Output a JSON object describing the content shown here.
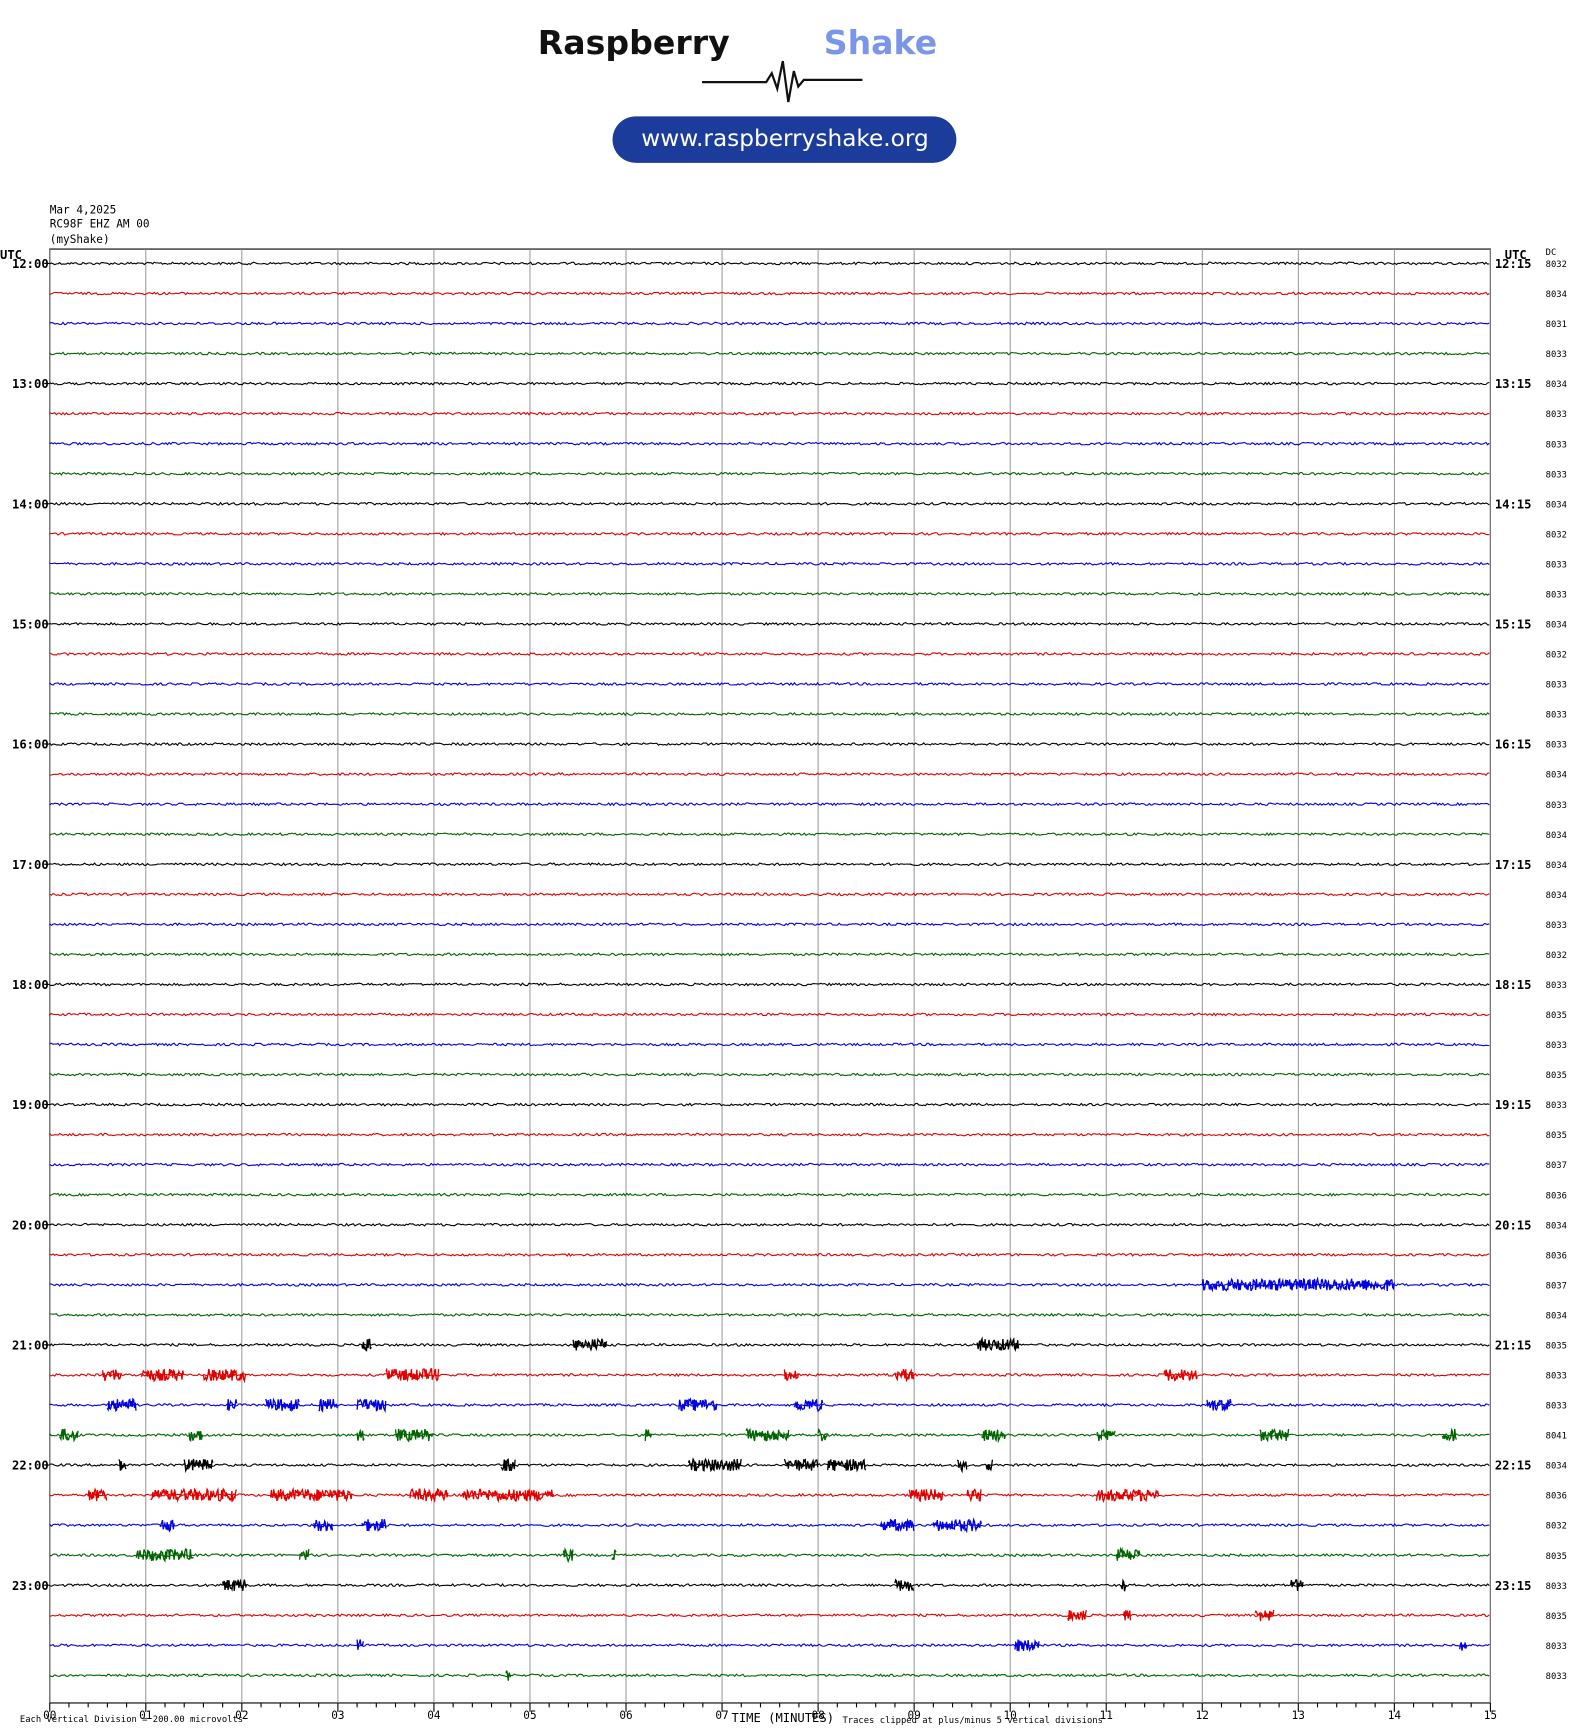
{
  "header": {
    "brand_first": "Raspberry",
    "brand_second": "Shake",
    "url": "www.raspberryshake.org"
  },
  "chart_data": {
    "type": "helicorder",
    "date": "Mar 4,2025",
    "station": "RC98F EHZ AM 00",
    "network": "(myShake)",
    "utc_left": "UTC",
    "utc_right": "UTC",
    "dc_header": "DC",
    "row_labels_left": [
      "12:00",
      "13:00",
      "14:00",
      "15:00",
      "16:00",
      "17:00",
      "18:00",
      "19:00",
      "20:00",
      "21:00",
      "22:00",
      "23:00"
    ],
    "row_labels_right": [
      "12:15",
      "13:15",
      "14:15",
      "15:15",
      "16:15",
      "17:15",
      "18:15",
      "19:15",
      "20:15",
      "21:15",
      "22:15",
      "23:15"
    ],
    "colors": [
      "#000000",
      "#e00000",
      "#0000e0",
      "#006400"
    ],
    "xlim": [
      0,
      15
    ],
    "xticks": [
      {
        "value": 0,
        "label": "00"
      },
      {
        "value": 1,
        "label": "01"
      },
      {
        "value": 2,
        "label": "02"
      },
      {
        "value": 3,
        "label": "03"
      },
      {
        "value": 4,
        "label": "04"
      },
      {
        "value": 5,
        "label": "05"
      },
      {
        "value": 6,
        "label": "06"
      },
      {
        "value": 7,
        "label": "07"
      },
      {
        "value": 8,
        "label": "08"
      },
      {
        "value": 9,
        "label": "09"
      },
      {
        "value": 10,
        "label": "10"
      },
      {
        "value": 11,
        "label": "11"
      },
      {
        "value": 12,
        "label": "12"
      },
      {
        "value": 13,
        "label": "13"
      },
      {
        "value": 14,
        "label": "14"
      },
      {
        "value": 15,
        "label": "15"
      }
    ],
    "xlabel": "TIME (MINUTES)",
    "note_left": "Each Vertical Division =  200.00 microvolts",
    "note_right": "Traces clipped at plus/minus 5 vertical divisions",
    "traces": [
      {
        "dc": "8032",
        "bursts": []
      },
      {
        "dc": "8034",
        "bursts": []
      },
      {
        "dc": "8031",
        "bursts": []
      },
      {
        "dc": "8033",
        "bursts": []
      },
      {
        "dc": "8034",
        "bursts": []
      },
      {
        "dc": "8033",
        "bursts": []
      },
      {
        "dc": "8033",
        "bursts": []
      },
      {
        "dc": "8033",
        "bursts": []
      },
      {
        "dc": "8034",
        "bursts": []
      },
      {
        "dc": "8032",
        "bursts": []
      },
      {
        "dc": "8033",
        "bursts": []
      },
      {
        "dc": "8033",
        "bursts": []
      },
      {
        "dc": "8034",
        "bursts": []
      },
      {
        "dc": "8032",
        "bursts": []
      },
      {
        "dc": "8033",
        "bursts": []
      },
      {
        "dc": "8033",
        "bursts": []
      },
      {
        "dc": "8033",
        "bursts": []
      },
      {
        "dc": "8034",
        "bursts": []
      },
      {
        "dc": "8033",
        "bursts": []
      },
      {
        "dc": "8034",
        "bursts": []
      },
      {
        "dc": "8034",
        "bursts": []
      },
      {
        "dc": "8034",
        "bursts": []
      },
      {
        "dc": "8033",
        "bursts": []
      },
      {
        "dc": "8032",
        "bursts": []
      },
      {
        "dc": "8033",
        "bursts": []
      },
      {
        "dc": "8035",
        "bursts": []
      },
      {
        "dc": "8033",
        "bursts": []
      },
      {
        "dc": "8035",
        "bursts": []
      },
      {
        "dc": "8033",
        "bursts": []
      },
      {
        "dc": "8035",
        "bursts": []
      },
      {
        "dc": "8037",
        "bursts": []
      },
      {
        "dc": "8036",
        "bursts": []
      },
      {
        "dc": "8034",
        "bursts": []
      },
      {
        "dc": "8036",
        "bursts": []
      },
      {
        "dc": "8037",
        "bursts": [
          [
            12.0,
            14.0
          ]
        ]
      },
      {
        "dc": "8034",
        "bursts": []
      },
      {
        "dc": "8035",
        "bursts": [
          [
            3.25,
            3.35
          ],
          [
            5.45,
            5.8
          ],
          [
            9.65,
            10.1
          ]
        ]
      },
      {
        "dc": "8033",
        "bursts": [
          [
            0.55,
            0.75
          ],
          [
            0.95,
            1.4
          ],
          [
            1.6,
            2.05
          ],
          [
            3.5,
            4.05
          ],
          [
            7.65,
            7.8
          ],
          [
            8.8,
            9.0
          ],
          [
            11.6,
            11.95
          ]
        ]
      },
      {
        "dc": "8033",
        "bursts": [
          [
            0.6,
            0.9
          ],
          [
            1.85,
            1.95
          ],
          [
            2.25,
            2.6
          ],
          [
            2.8,
            3.0
          ],
          [
            3.2,
            3.5
          ],
          [
            6.55,
            6.95
          ],
          [
            7.75,
            8.05
          ],
          [
            12.05,
            12.3
          ]
        ]
      },
      {
        "dc": "8041",
        "bursts": [
          [
            0.1,
            0.3
          ],
          [
            1.45,
            1.6
          ],
          [
            3.2,
            3.28
          ],
          [
            3.6,
            4.0
          ],
          [
            6.2,
            6.27
          ],
          [
            7.25,
            7.7
          ],
          [
            8.0,
            8.1
          ],
          [
            9.7,
            9.95
          ],
          [
            10.9,
            11.1
          ],
          [
            12.6,
            12.9
          ],
          [
            14.5,
            14.65
          ]
        ]
      },
      {
        "dc": "8034",
        "bursts": [
          [
            0.72,
            0.8
          ],
          [
            1.4,
            1.7
          ],
          [
            4.7,
            4.85
          ],
          [
            6.65,
            7.2
          ],
          [
            7.65,
            8.0
          ],
          [
            8.1,
            8.5
          ],
          [
            9.45,
            9.55
          ],
          [
            9.75,
            9.82
          ]
        ]
      },
      {
        "dc": "8036",
        "bursts": [
          [
            0.4,
            0.6
          ],
          [
            1.05,
            1.95
          ],
          [
            2.3,
            3.15
          ],
          [
            3.75,
            4.15
          ],
          [
            4.3,
            5.25
          ],
          [
            8.95,
            9.3
          ],
          [
            9.55,
            9.7
          ],
          [
            10.9,
            11.55
          ]
        ]
      },
      {
        "dc": "8032",
        "bursts": [
          [
            1.15,
            1.3
          ],
          [
            2.75,
            2.95
          ],
          [
            3.25,
            3.5
          ],
          [
            8.65,
            9.0
          ],
          [
            9.2,
            9.7
          ]
        ]
      },
      {
        "dc": "8035",
        "bursts": [
          [
            0.9,
            1.5
          ],
          [
            2.6,
            2.7
          ],
          [
            5.35,
            5.45
          ],
          [
            5.85,
            5.9
          ],
          [
            11.1,
            11.35
          ]
        ]
      },
      {
        "dc": "8033",
        "bursts": [
          [
            1.8,
            2.05
          ],
          [
            8.8,
            9.0
          ],
          [
            11.15,
            11.22
          ],
          [
            12.92,
            13.05
          ]
        ]
      },
      {
        "dc": "8035",
        "bursts": [
          [
            10.6,
            10.8
          ],
          [
            11.18,
            11.26
          ],
          [
            12.55,
            12.75
          ]
        ]
      },
      {
        "dc": "8033",
        "bursts": [
          [
            3.2,
            3.27
          ],
          [
            10.05,
            10.3
          ],
          [
            14.68,
            14.76
          ]
        ]
      },
      {
        "dc": "8033",
        "bursts": [
          [
            4.75,
            4.8
          ]
        ]
      }
    ]
  }
}
